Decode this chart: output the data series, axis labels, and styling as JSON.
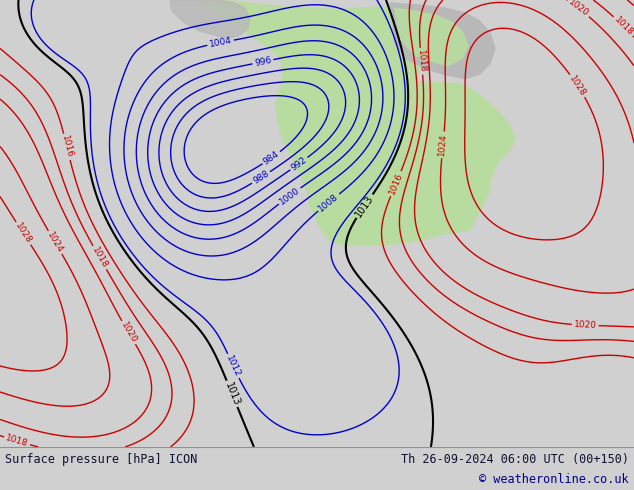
{
  "title_left": "Surface pressure [hPa] ICON",
  "title_right": "Th 26-09-2024 06:00 UTC (00+150)",
  "copyright": "© weatheronline.co.uk",
  "bg_color": "#d0d0d0",
  "land_gray": "#b8b8b8",
  "land_green": "#b8dca0",
  "ocean_color": "#d0d0d0",
  "footer_bg": "#e0e0e0",
  "text_color": "#101030",
  "copyright_color": "#00008b",
  "isobar_blue": "#0000cc",
  "isobar_red": "#cc0000",
  "isobar_black": "#000000",
  "label_blue": "#0000cc",
  "label_red": "#cc0000",
  "label_black": "#000000",
  "isobar_linewidth": 1.0,
  "black_linewidth": 1.5
}
